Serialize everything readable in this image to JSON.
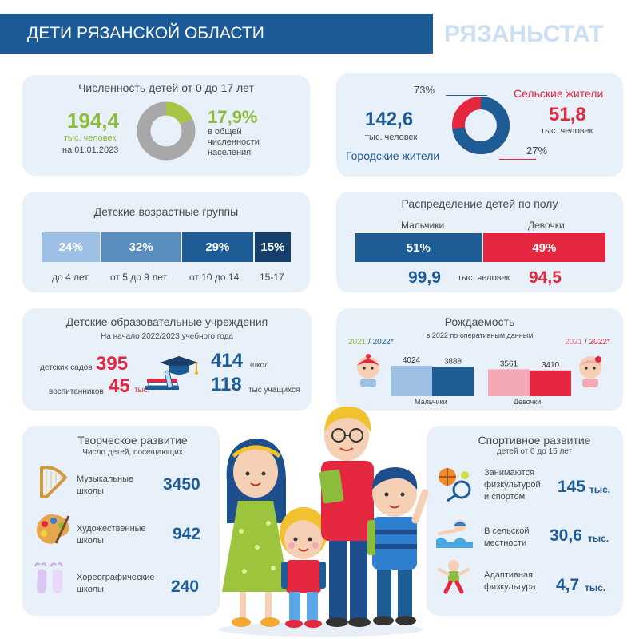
{
  "header": {
    "title": "ДЕТИ РЯЗАНСКОЙ ОБЛАСТИ",
    "logo": "РЯЗАНЬСТАТ",
    "colors": {
      "banner": "#1b5a97",
      "logo": "#cddff2"
    }
  },
  "population": {
    "title": "Численность детей от 0 до 17 лет",
    "total": "194,4",
    "unit": "тыс. человек",
    "date": "на 01.01.2023",
    "share": "17,9%",
    "share_caption": [
      "в общей",
      "численности",
      "населения"
    ],
    "share_value": 17.9,
    "colors": {
      "share": "#a7c545",
      "rest": "#a8a8a8"
    }
  },
  "urban_rural": {
    "urban_label": "Городские жители",
    "urban_value": "142,6",
    "urban_unit": "тыс. человек",
    "urban_pct": "73%",
    "rural_label": "Сельские жители",
    "rural_value": "51,8",
    "rural_unit": "тыс. человек",
    "rural_pct": "27%",
    "urban_share": 73,
    "colors": {
      "urban": "#1d5c94",
      "rural": "#e4263f"
    }
  },
  "age_groups": {
    "title": "Детские возрастные группы",
    "groups": [
      {
        "pct": "24%",
        "label": "до 4 лет",
        "value": 24,
        "color": "#9dbfe3"
      },
      {
        "pct": "32%",
        "label": "от 5 до 9 лет",
        "value": 32,
        "color": "#5a8cbd"
      },
      {
        "pct": "29%",
        "label": "от 10 до 14",
        "value": 29,
        "color": "#1d5c94"
      },
      {
        "pct": "15%",
        "label": "15-17",
        "value": 15,
        "color": "#163f6b"
      }
    ]
  },
  "gender": {
    "title": "Распределение детей по полу",
    "boys_label": "Мальчики",
    "girls_label": "Девочки",
    "boys_pct": "51%",
    "girls_pct": "49%",
    "boys_share": 51,
    "boys_value": "99,9",
    "girls_value": "94,5",
    "unit": "тыс. человек",
    "colors": {
      "boys": "#1d5c94",
      "girls": "#e4263f"
    }
  },
  "education": {
    "title": "Детские образовательные учреждения",
    "subtitle": "На начало 2022/2023 учебного года",
    "kindergartens_label": "детских садов",
    "kindergartens": "395",
    "pupils_label": "воспитанников",
    "pupils": "45",
    "pupils_unit": "тыс.",
    "schools": "414",
    "schools_label": "школ",
    "students": "118",
    "students_label": "тыс учащихся"
  },
  "birth": {
    "title": "Рождаемость",
    "subtitle": "в 2022 по оперативным данным",
    "left_legend": {
      "year1": "2021",
      "slash": " / ",
      "year2": "2022*"
    },
    "right_legend": {
      "year1": "2021",
      "slash": " / ",
      "year2": "2022*"
    },
    "boys_label": "Мальчики",
    "girls_label": "Девочки"
  },
  "chart_data": {
    "type": "bar",
    "title": "Рождаемость",
    "categories": [
      "Мальчики",
      "Девочки"
    ],
    "series": [
      {
        "name": "2021",
        "values": [
          4024,
          3561
        ]
      },
      {
        "name": "2022*",
        "values": [
          3888,
          3410
        ]
      }
    ],
    "labels": [
      "4024",
      "3888",
      "3561",
      "3410"
    ],
    "colors": {
      "boys_2021": "#9dbfe3",
      "boys_2022": "#1d5c94",
      "girls_2021": "#f4a8b6",
      "girls_2022": "#e4263f"
    }
  },
  "creative": {
    "title": "Творческое развитие",
    "subtitle": "Число  детей, посещающих",
    "items": [
      {
        "label1": "Музыкальные",
        "label2": "школы",
        "value": "3450",
        "icon": "harp-icon"
      },
      {
        "label1": "Художественные",
        "label2": "школы",
        "value": "942",
        "icon": "palette-icon"
      },
      {
        "label1": "Хореографические",
        "label2": "школы",
        "value": "240",
        "icon": "ballet-shoes-icon"
      }
    ]
  },
  "sport": {
    "title": "Спортивное развитие",
    "subtitle": "детей от 0 до 15 лет",
    "items": [
      {
        "label1": "Занимаются",
        "label2": "физкультурой",
        "label3": "и спортом",
        "value": "145",
        "unit": "тыс.",
        "icon": "sports-equipment-icon"
      },
      {
        "label1": "В сельской",
        "label2": "местности",
        "label3": "",
        "value": "30,6",
        "unit": "тыс.",
        "icon": "swimmer-icon"
      },
      {
        "label1": "Адаптивная",
        "label2": "физкультура",
        "label3": "",
        "value": "4,7",
        "unit": "тыс.",
        "icon": "adaptive-sport-icon"
      }
    ]
  }
}
